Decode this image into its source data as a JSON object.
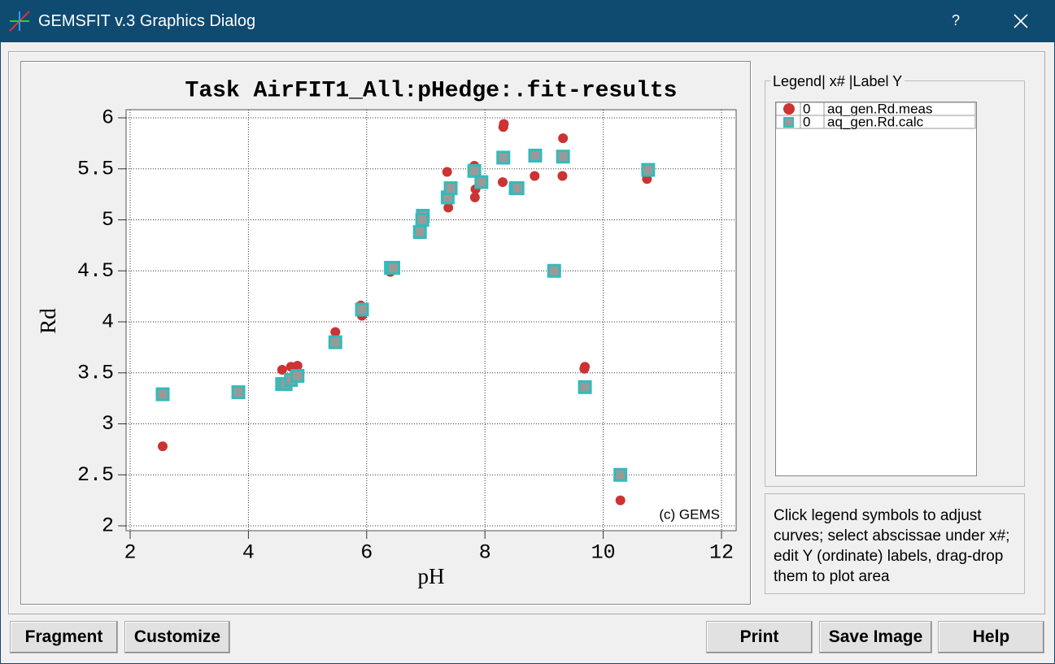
{
  "window": {
    "title": "GEMSFIT v.3 Graphics Dialog",
    "help": "?"
  },
  "chart_data": {
    "type": "scatter",
    "title": "Task AirFIT1_All:pHedge:.fit-results",
    "xlabel": "pH",
    "ylabel": "Rd",
    "annotation": "(c) GEMS",
    "xlim": [
      2,
      12
    ],
    "ylim": [
      2,
      6
    ],
    "xticks": [
      2,
      4,
      6,
      8,
      10,
      12
    ],
    "yticks": [
      2,
      2.5,
      3,
      3.5,
      4,
      4.5,
      5,
      5.5,
      6
    ],
    "grid": true,
    "series": [
      {
        "name": "aq_gen.Rd.meas",
        "color": "#cc3333",
        "marker": "circle",
        "x": [
          2.55,
          3.83,
          4.57,
          4.72,
          4.83,
          5.47,
          5.9,
          5.92,
          6.4,
          6.93,
          7.36,
          7.38,
          7.82,
          7.83,
          7.84,
          8.32,
          8.31,
          8.3,
          8.84,
          9.32,
          9.31,
          9.69,
          9.68,
          10.29,
          10.74
        ],
        "values": [
          2.78,
          3.32,
          3.53,
          3.56,
          3.57,
          3.9,
          4.16,
          4.06,
          4.49,
          4.99,
          5.47,
          5.12,
          5.53,
          5.22,
          5.3,
          5.94,
          5.91,
          5.37,
          5.43,
          5.8,
          5.43,
          3.56,
          3.54,
          2.25,
          5.4
        ]
      },
      {
        "name": "aq_gen.Rd.calc",
        "color": "#999999",
        "edge_color": "#33bbbb",
        "marker": "square",
        "x": [
          2.55,
          3.83,
          4.57,
          4.63,
          4.72,
          4.83,
          5.47,
          5.92,
          6.41,
          6.45,
          6.9,
          6.95,
          6.94,
          7.37,
          7.42,
          7.82,
          7.94,
          8.31,
          8.52,
          8.55,
          8.85,
          9.32,
          9.17,
          9.69,
          10.29,
          10.76
        ],
        "values": [
          3.29,
          3.31,
          3.39,
          3.39,
          3.43,
          3.47,
          3.8,
          4.12,
          4.53,
          4.53,
          4.88,
          5.04,
          5.0,
          5.22,
          5.31,
          5.48,
          5.37,
          5.61,
          5.31,
          5.31,
          5.63,
          5.62,
          4.5,
          3.36,
          2.5,
          5.49
        ]
      }
    ]
  },
  "legend_panel": {
    "group_title": "Legend| x# |Label Y",
    "x_index": [
      0,
      0
    ]
  },
  "hint": "Click legend symbols to adjust curves; select abscissae under x#; edit Y (ordinate) labels, drag-drop them to plot area",
  "buttons": [
    "Fragment",
    "Customize",
    "Print",
    "Save Image",
    "Help"
  ]
}
